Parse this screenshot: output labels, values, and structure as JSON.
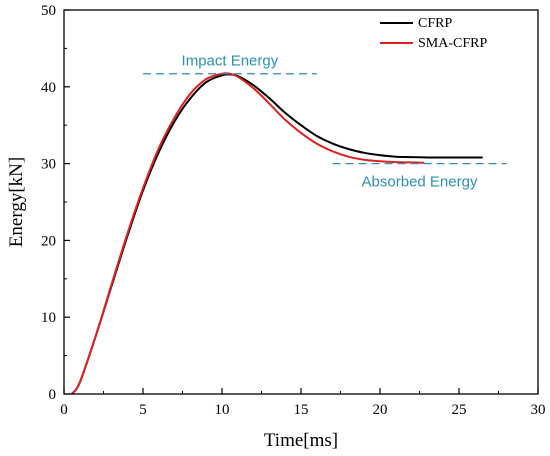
{
  "chart_data": {
    "type": "line",
    "xlabel": "Time[ms]",
    "ylabel": "Energy[kN]",
    "xlim": [
      0,
      30
    ],
    "ylim": [
      0,
      50
    ],
    "xticks": [
      0,
      5,
      10,
      15,
      20,
      25,
      30
    ],
    "yticks": [
      0,
      10,
      20,
      30,
      40,
      50
    ],
    "grid": false,
    "legend_position": "top-right",
    "series": [
      {
        "name": "CFRP",
        "color": "#000000",
        "x": [
          0.5,
          1,
          2,
          3,
          4,
          5,
          6,
          7,
          8,
          9,
          10,
          10.5,
          11,
          12,
          13,
          14,
          15,
          16,
          17,
          18,
          19,
          20,
          21,
          22,
          23,
          24,
          25,
          26.5
        ],
        "y": [
          0,
          1.5,
          7.5,
          14,
          20.5,
          26.5,
          31.5,
          35.5,
          38.5,
          40.6,
          41.5,
          41.6,
          41.4,
          40.2,
          38.5,
          36.6,
          35,
          33.6,
          32.6,
          31.9,
          31.4,
          31.1,
          30.9,
          30.85,
          30.8,
          30.8,
          30.8,
          30.8
        ]
      },
      {
        "name": "SMA-CFRP",
        "color": "#e02020",
        "x": [
          0.5,
          1,
          2,
          3,
          4,
          5,
          6,
          7,
          8,
          9,
          10,
          10.5,
          11,
          12,
          13,
          14,
          15,
          16,
          17,
          18,
          19,
          20,
          21,
          22,
          22.8
        ],
        "y": [
          0,
          1.5,
          7.5,
          14.2,
          20.8,
          26.8,
          32,
          36,
          39.1,
          41,
          41.7,
          41.7,
          41.3,
          39.8,
          37.8,
          35.7,
          34,
          32.6,
          31.6,
          30.9,
          30.5,
          30.3,
          30.2,
          30.15,
          30.1
        ]
      }
    ],
    "annotations": [
      {
        "text": "Impact Energy",
        "color": "#2d8fb5",
        "line_y": 41.7,
        "line_x": [
          5,
          16
        ]
      },
      {
        "text": "Absorbed Energy",
        "color": "#2d8fb5",
        "line_y": 30,
        "line_x": [
          17,
          28
        ]
      }
    ]
  }
}
